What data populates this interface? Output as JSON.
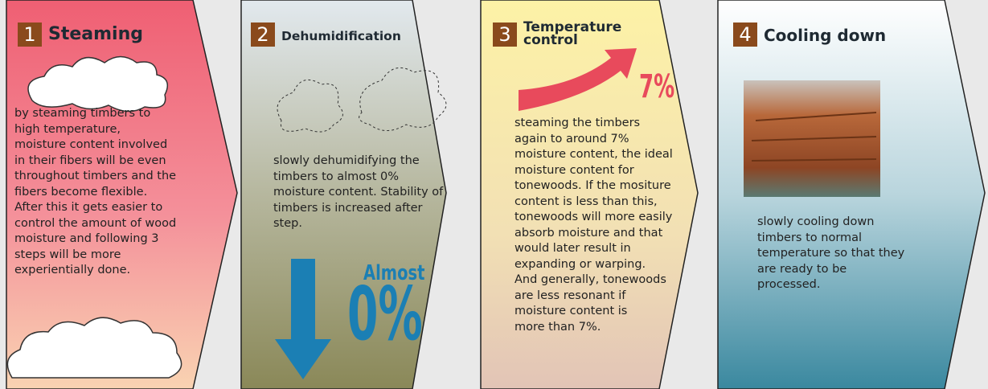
{
  "steps": [
    {
      "number": "1",
      "title": "Steaming",
      "description_lines": [
        "by steaming timbers to",
        "high temperature,",
        "moisture content involved",
        "in their fibers will be even",
        "throughout timbers and the",
        "fibers become flexible.",
        "After this it gets easier to",
        "control the amount of wood",
        "moisture and following 3",
        "steps will be more",
        "experientially done."
      ]
    },
    {
      "number": "2",
      "title": "Dehumidification",
      "description_lines": [
        "slowly dehumidifying the",
        "timbers to almost 0%",
        "moisture content. Stability of",
        "timbers is increased after",
        "step."
      ],
      "callout_label": "Almost",
      "callout_value": "0%"
    },
    {
      "number": "3",
      "title": "Temperature control",
      "description_lines": [
        "steaming the timbers",
        "again to around 7%",
        "moisture content, the ideal",
        "moisture content for",
        "tonewoods. If the mositure",
        "content is less than this,",
        "tonewoods will more easily",
        "absorb moisture and that",
        "would later result in",
        "expanding or warping.",
        "And generally, tonewoods",
        "are less resonant if",
        "moisture content is",
        "more than 7%."
      ],
      "callout_value": "7%"
    },
    {
      "number": "4",
      "title": "Cooling down",
      "description_lines": [
        "slowly cooling down",
        "timbers to normal",
        "temperature so that they",
        "are ready to be",
        "processed."
      ]
    }
  ]
}
